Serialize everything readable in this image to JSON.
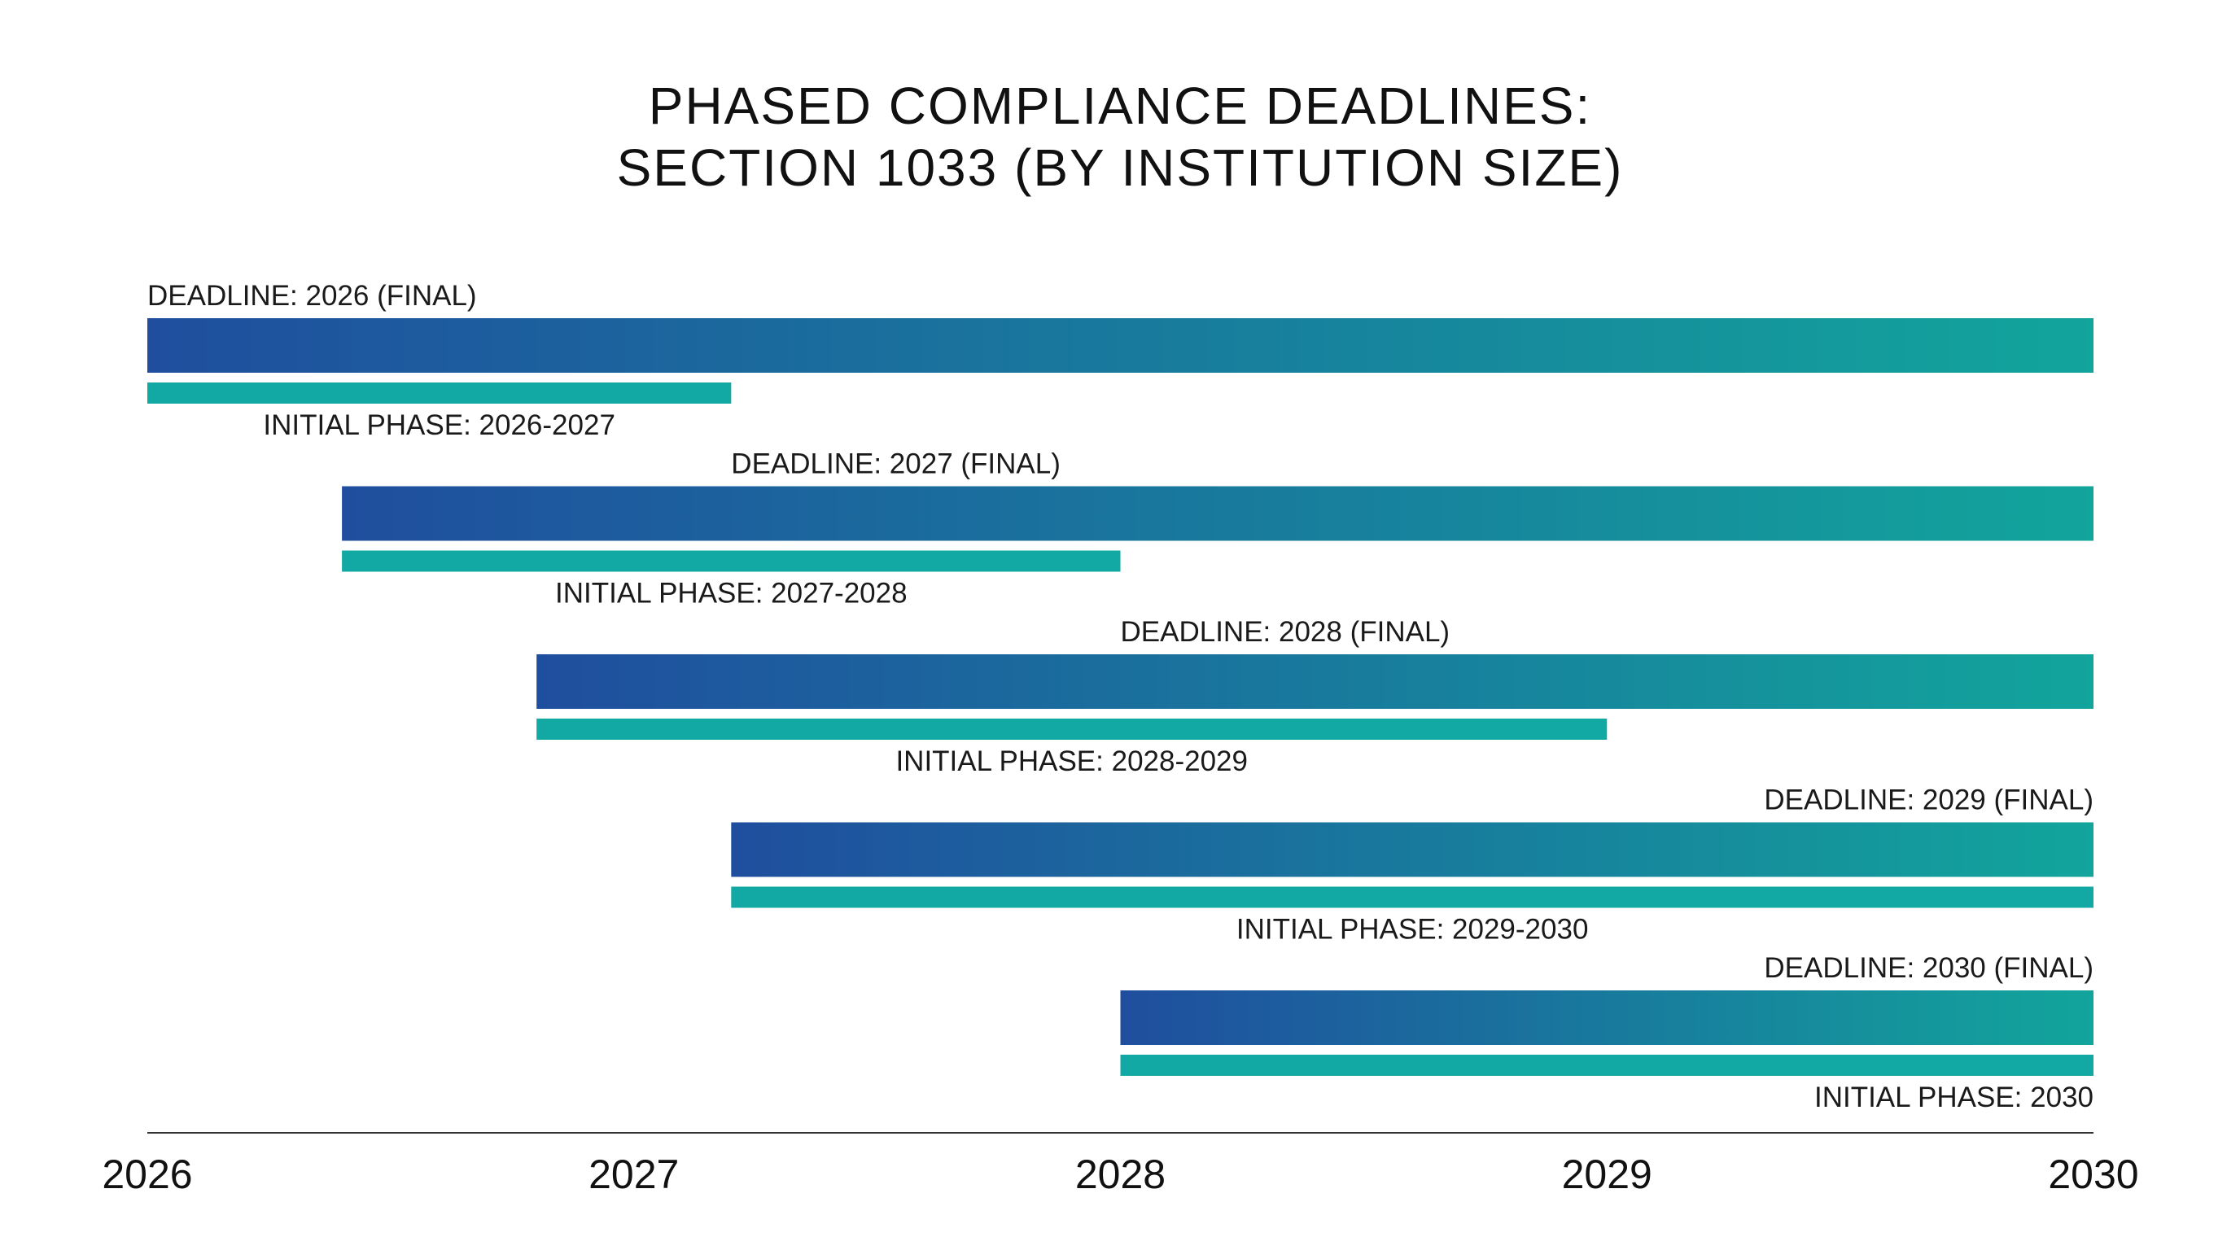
{
  "chart_data": {
    "type": "bar",
    "title_lines": [
      "PHASED COMPLIANCE DEADLINES:",
      "SECTION 1033 (BY INSTITUTION SIZE)"
    ],
    "xlabel": "",
    "ylabel": "",
    "xlim": [
      2026,
      2030
    ],
    "x_ticks": [
      "2026",
      "2027",
      "2028",
      "2029",
      "2030"
    ],
    "grid": false,
    "legend": "none",
    "series": [
      {
        "name": "DEADLINE",
        "color_start": "#1f4e9e",
        "color_end": "#12a59c"
      },
      {
        "name": "INITIAL PHASE",
        "color": "#12a8a3"
      }
    ],
    "rows": [
      {
        "deadline_label": "DEADLINE: 2026 (FINAL)",
        "deadline_start": 2026.0,
        "deadline_end": 2030.0,
        "phase_label": "INITIAL PHASE: 2026-2027",
        "phase_start": 2026.0,
        "phase_end": 2027.2
      },
      {
        "deadline_label": "DEADLINE: 2027 (FINAL)",
        "deadline_start": 2026.4,
        "deadline_end": 2030.0,
        "phase_label": "INITIAL PHASE: 2027-2028",
        "phase_start": 2026.4,
        "phase_end": 2028.0
      },
      {
        "deadline_label": "DEADLINE: 2028 (FINAL)",
        "deadline_start": 2026.8,
        "deadline_end": 2030.0,
        "phase_label": "INITIAL PHASE: 2028-2029",
        "phase_start": 2026.8,
        "phase_end": 2029.0
      },
      {
        "deadline_label": "DEADLINE: 2029 (FINAL)",
        "deadline_start": 2027.2,
        "deadline_end": 2030.0,
        "phase_label": "INITIAL PHASE: 2029-2030",
        "phase_start": 2027.2,
        "phase_end": 2030.0
      },
      {
        "deadline_label": "DEADLINE: 2030 (FINAL)",
        "deadline_start": 2028.0,
        "deadline_end": 2030.0,
        "phase_label": "INITIAL PHASE: 2030",
        "phase_start": 2028.0,
        "phase_end": 2030.0
      }
    ]
  }
}
